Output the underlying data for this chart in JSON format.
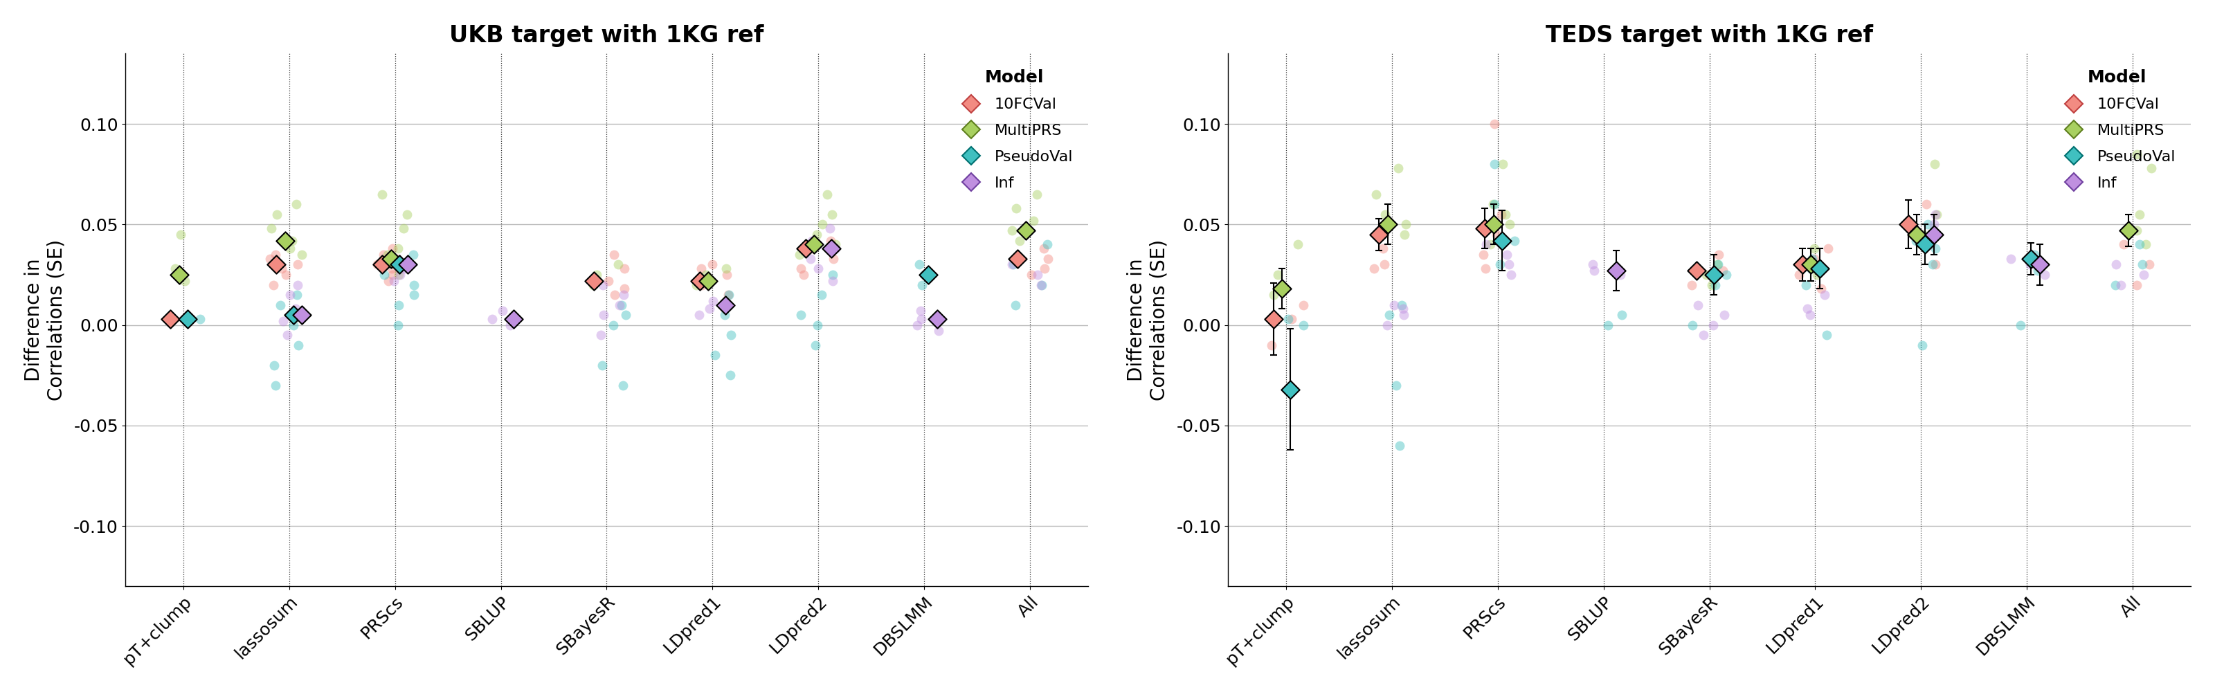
{
  "titles": [
    "UKB target with 1KG ref",
    "TEDS target with 1KG ref"
  ],
  "ylabel": "Difference in\nCorrelations (SE)",
  "categories": [
    "pT+clump",
    "lassosum",
    "PRScs",
    "SBLUP",
    "SBayesR",
    "LDpred1",
    "LDpred2",
    "DBSLMM",
    "All"
  ],
  "models": [
    "10FCVal",
    "MultiPRS",
    "PseudoVal",
    "Inf"
  ],
  "colors": {
    "10FCVal": "#F28B82",
    "MultiPRS": "#A8D060",
    "PseudoVal": "#40C0C0",
    "Inf": "#C090E0"
  },
  "marker_edge_colors": {
    "10FCVal": "#C04040",
    "MultiPRS": "#608020",
    "PseudoVal": "#007070",
    "Inf": "#7040A0"
  },
  "ylim": [
    -0.13,
    0.135
  ],
  "yticks": [
    -0.1,
    -0.05,
    0.0,
    0.05,
    0.1
  ],
  "background_color": "#FFFFFF",
  "grid_color": "#BBBBBB",
  "panel1": {
    "scatter": {
      "pT+clump": {
        "10FCVal": [
          0.003
        ],
        "MultiPRS": [
          0.022,
          0.028,
          0.045
        ],
        "PseudoVal": [
          0.003
        ],
        "Inf": []
      },
      "lassosum": {
        "10FCVal": [
          0.025,
          0.03,
          0.033,
          0.028,
          0.035,
          0.02
        ],
        "MultiPRS": [
          0.038,
          0.042,
          0.048,
          0.055,
          0.06,
          0.035
        ],
        "PseudoVal": [
          -0.02,
          -0.01,
          0.0,
          0.005,
          0.015,
          -0.03,
          0.01
        ],
        "Inf": [
          0.002,
          0.005,
          0.008,
          0.015,
          0.02,
          -0.005
        ]
      },
      "PRScs": {
        "10FCVal": [
          0.025,
          0.03,
          0.033,
          0.038,
          0.028,
          0.022,
          0.035
        ],
        "MultiPRS": [
          0.025,
          0.03,
          0.035,
          0.048,
          0.038,
          0.055,
          0.065
        ],
        "PseudoVal": [
          0.025,
          0.03,
          0.035,
          0.015,
          0.02,
          0.0,
          0.01
        ],
        "Inf": [
          0.025,
          0.03,
          0.033,
          0.028,
          0.022
        ]
      },
      "SBLUP": {
        "10FCVal": [],
        "MultiPRS": [],
        "PseudoVal": [],
        "Inf": [
          0.0,
          0.003,
          0.007
        ]
      },
      "SBayesR": {
        "10FCVal": [
          0.018,
          0.022,
          0.028,
          0.015,
          0.035
        ],
        "MultiPRS": [
          0.02,
          0.025,
          0.03
        ],
        "PseudoVal": [
          -0.03,
          -0.02,
          0.0,
          0.005,
          0.01
        ],
        "Inf": [
          0.005,
          0.01,
          0.015,
          0.02,
          -0.005
        ]
      },
      "LDpred1": {
        "10FCVal": [
          0.02,
          0.025,
          0.028,
          0.015,
          0.03
        ],
        "MultiPRS": [
          0.02,
          0.025,
          0.028,
          0.022
        ],
        "PseudoVal": [
          -0.025,
          -0.015,
          -0.005,
          0.005,
          0.015
        ],
        "Inf": [
          0.005,
          0.01,
          0.012,
          0.008
        ]
      },
      "LDpred2": {
        "10FCVal": [
          0.033,
          0.038,
          0.042,
          0.028,
          0.025
        ],
        "MultiPRS": [
          0.035,
          0.04,
          0.045,
          0.05,
          0.055,
          0.065
        ],
        "PseudoVal": [
          -0.01,
          0.0,
          0.005,
          0.015,
          0.025
        ],
        "Inf": [
          0.033,
          0.038,
          0.042,
          0.028,
          0.022,
          0.048
        ]
      },
      "DBSLMM": {
        "10FCVal": [],
        "MultiPRS": [],
        "PseudoVal": [
          0.025,
          0.03,
          0.02
        ],
        "Inf": [
          0.0,
          0.003,
          0.007,
          -0.003
        ]
      },
      "All": {
        "10FCVal": [
          0.028,
          0.033,
          0.038,
          0.025
        ],
        "MultiPRS": [
          0.042,
          0.047,
          0.052,
          0.058,
          0.065
        ],
        "PseudoVal": [
          0.01,
          0.02,
          0.03,
          0.04
        ],
        "Inf": [
          0.02,
          0.025,
          0.03
        ]
      }
    },
    "means": {
      "pT+clump": {
        "10FCVal": 0.003,
        "MultiPRS": 0.025,
        "PseudoVal": 0.003,
        "Inf": null
      },
      "lassosum": {
        "10FCVal": 0.03,
        "MultiPRS": 0.042,
        "PseudoVal": 0.005,
        "Inf": 0.005
      },
      "PRScs": {
        "10FCVal": 0.03,
        "MultiPRS": 0.033,
        "PseudoVal": 0.03,
        "Inf": 0.03
      },
      "SBLUP": {
        "10FCVal": null,
        "MultiPRS": null,
        "PseudoVal": null,
        "Inf": 0.003
      },
      "SBayesR": {
        "10FCVal": 0.022,
        "MultiPRS": null,
        "PseudoVal": null,
        "Inf": null
      },
      "LDpred1": {
        "10FCVal": 0.022,
        "MultiPRS": 0.022,
        "PseudoVal": null,
        "Inf": 0.01
      },
      "LDpred2": {
        "10FCVal": 0.038,
        "MultiPRS": 0.04,
        "PseudoVal": null,
        "Inf": 0.038
      },
      "DBSLMM": {
        "10FCVal": null,
        "MultiPRS": null,
        "PseudoVal": 0.025,
        "Inf": 0.003
      },
      "All": {
        "10FCVal": 0.033,
        "MultiPRS": 0.047,
        "PseudoVal": null,
        "Inf": null
      }
    },
    "errors": {
      "pT+clump": {
        "10FCVal": null,
        "MultiPRS": null,
        "PseudoVal": null,
        "Inf": null
      },
      "lassosum": {
        "10FCVal": null,
        "MultiPRS": null,
        "PseudoVal": null,
        "Inf": null
      },
      "PRScs": {
        "10FCVal": null,
        "MultiPRS": null,
        "PseudoVal": null,
        "Inf": null
      },
      "SBLUP": {
        "10FCVal": null,
        "MultiPRS": null,
        "PseudoVal": null,
        "Inf": null
      },
      "SBayesR": {
        "10FCVal": null,
        "MultiPRS": null,
        "PseudoVal": null,
        "Inf": null
      },
      "LDpred1": {
        "10FCVal": null,
        "MultiPRS": null,
        "PseudoVal": null,
        "Inf": null
      },
      "LDpred2": {
        "10FCVal": null,
        "MultiPRS": null,
        "PseudoVal": null,
        "Inf": null
      },
      "DBSLMM": {
        "10FCVal": null,
        "MultiPRS": null,
        "PseudoVal": null,
        "Inf": null
      },
      "All": {
        "10FCVal": null,
        "MultiPRS": null,
        "PseudoVal": null,
        "Inf": null
      }
    }
  },
  "panel2": {
    "scatter": {
      "pT+clump": {
        "10FCVal": [
          0.003,
          -0.01,
          0.01
        ],
        "MultiPRS": [
          0.015,
          0.018,
          0.025,
          0.04
        ],
        "PseudoVal": [
          0.003,
          0.0
        ],
        "Inf": []
      },
      "lassosum": {
        "10FCVal": [
          0.03,
          0.038,
          0.045,
          0.05,
          0.028
        ],
        "MultiPRS": [
          0.045,
          0.05,
          0.055,
          0.065,
          0.078
        ],
        "PseudoVal": [
          -0.06,
          -0.03,
          0.005,
          0.01
        ],
        "Inf": [
          0.0,
          0.005,
          0.01,
          0.008
        ]
      },
      "PRScs": {
        "10FCVal": [
          0.035,
          0.045,
          0.05,
          0.055,
          0.028,
          0.1
        ],
        "MultiPRS": [
          0.04,
          0.05,
          0.055,
          0.06,
          0.08
        ],
        "PseudoVal": [
          0.03,
          0.042,
          0.05,
          0.06,
          0.08
        ],
        "Inf": [
          0.025,
          0.03,
          0.035,
          0.04
        ]
      },
      "SBLUP": {
        "10FCVal": [],
        "MultiPRS": [],
        "PseudoVal": [
          0.0,
          0.005
        ],
        "Inf": [
          0.025,
          0.027,
          0.03
        ]
      },
      "SBayesR": {
        "10FCVal": [
          0.02,
          0.027,
          0.035
        ],
        "MultiPRS": [
          0.02,
          0.025,
          0.03
        ],
        "PseudoVal": [
          0.02,
          0.025,
          0.03,
          0.0
        ],
        "Inf": [
          0.005,
          0.01,
          0.0,
          -0.005
        ]
      },
      "LDpred1": {
        "10FCVal": [
          0.018,
          0.025,
          0.033,
          0.038
        ],
        "MultiPRS": [
          0.025,
          0.03,
          0.038
        ],
        "PseudoVal": [
          0.02,
          0.028,
          0.033,
          -0.005
        ],
        "Inf": [
          0.005,
          0.008,
          0.015
        ]
      },
      "LDpred2": {
        "10FCVal": [
          0.04,
          0.05,
          0.06,
          0.03
        ],
        "MultiPRS": [
          0.04,
          0.045,
          0.055,
          0.08
        ],
        "PseudoVal": [
          0.03,
          0.038,
          0.042,
          0.05,
          -0.01
        ],
        "Inf": [
          0.04,
          0.045,
          0.05,
          0.055
        ]
      },
      "DBSLMM": {
        "10FCVal": [],
        "MultiPRS": [],
        "PseudoVal": [
          0.027,
          0.035,
          0.0
        ],
        "Inf": [
          0.025,
          0.03,
          0.033
        ]
      },
      "All": {
        "10FCVal": [
          0.02,
          0.03,
          0.04
        ],
        "MultiPRS": [
          0.04,
          0.047,
          0.055,
          0.078,
          0.085
        ],
        "PseudoVal": [
          0.02,
          0.03,
          0.04
        ],
        "Inf": [
          0.02,
          0.025,
          0.03
        ]
      }
    },
    "means": {
      "pT+clump": {
        "10FCVal": 0.003,
        "MultiPRS": 0.018,
        "PseudoVal": -0.032,
        "Inf": null
      },
      "lassosum": {
        "10FCVal": 0.045,
        "MultiPRS": 0.05,
        "PseudoVal": null,
        "Inf": null
      },
      "PRScs": {
        "10FCVal": 0.048,
        "MultiPRS": 0.05,
        "PseudoVal": 0.042,
        "Inf": null
      },
      "SBLUP": {
        "10FCVal": null,
        "MultiPRS": null,
        "PseudoVal": null,
        "Inf": 0.027
      },
      "SBayesR": {
        "10FCVal": 0.027,
        "MultiPRS": null,
        "PseudoVal": 0.025,
        "Inf": null
      },
      "LDpred1": {
        "10FCVal": 0.03,
        "MultiPRS": 0.03,
        "PseudoVal": 0.028,
        "Inf": null
      },
      "LDpred2": {
        "10FCVal": 0.05,
        "MultiPRS": 0.045,
        "PseudoVal": 0.04,
        "Inf": 0.045
      },
      "DBSLMM": {
        "10FCVal": null,
        "MultiPRS": null,
        "PseudoVal": 0.033,
        "Inf": 0.03
      },
      "All": {
        "10FCVal": null,
        "MultiPRS": 0.047,
        "PseudoVal": null,
        "Inf": null
      }
    },
    "errors": {
      "pT+clump": {
        "10FCVal": 0.018,
        "MultiPRS": 0.01,
        "PseudoVal": 0.03,
        "Inf": null
      },
      "lassosum": {
        "10FCVal": 0.008,
        "MultiPRS": 0.01,
        "PseudoVal": null,
        "Inf": null
      },
      "PRScs": {
        "10FCVal": 0.01,
        "MultiPRS": 0.01,
        "PseudoVal": 0.015,
        "Inf": null
      },
      "SBLUP": {
        "10FCVal": null,
        "MultiPRS": null,
        "PseudoVal": null,
        "Inf": 0.01
      },
      "SBayesR": {
        "10FCVal": null,
        "MultiPRS": null,
        "PseudoVal": 0.01,
        "Inf": null
      },
      "LDpred1": {
        "10FCVal": 0.008,
        "MultiPRS": 0.008,
        "PseudoVal": 0.01,
        "Inf": null
      },
      "LDpred2": {
        "10FCVal": 0.012,
        "MultiPRS": 0.01,
        "PseudoVal": 0.01,
        "Inf": 0.01
      },
      "DBSLMM": {
        "10FCVal": null,
        "MultiPRS": null,
        "PseudoVal": 0.008,
        "Inf": 0.01
      },
      "All": {
        "10FCVal": null,
        "MultiPRS": 0.008,
        "PseudoVal": null,
        "Inf": null
      }
    }
  },
  "model_offsets": {
    "10FCVal": -0.12,
    "MultiPRS": -0.04,
    "PseudoVal": 0.04,
    "Inf": 0.12
  }
}
